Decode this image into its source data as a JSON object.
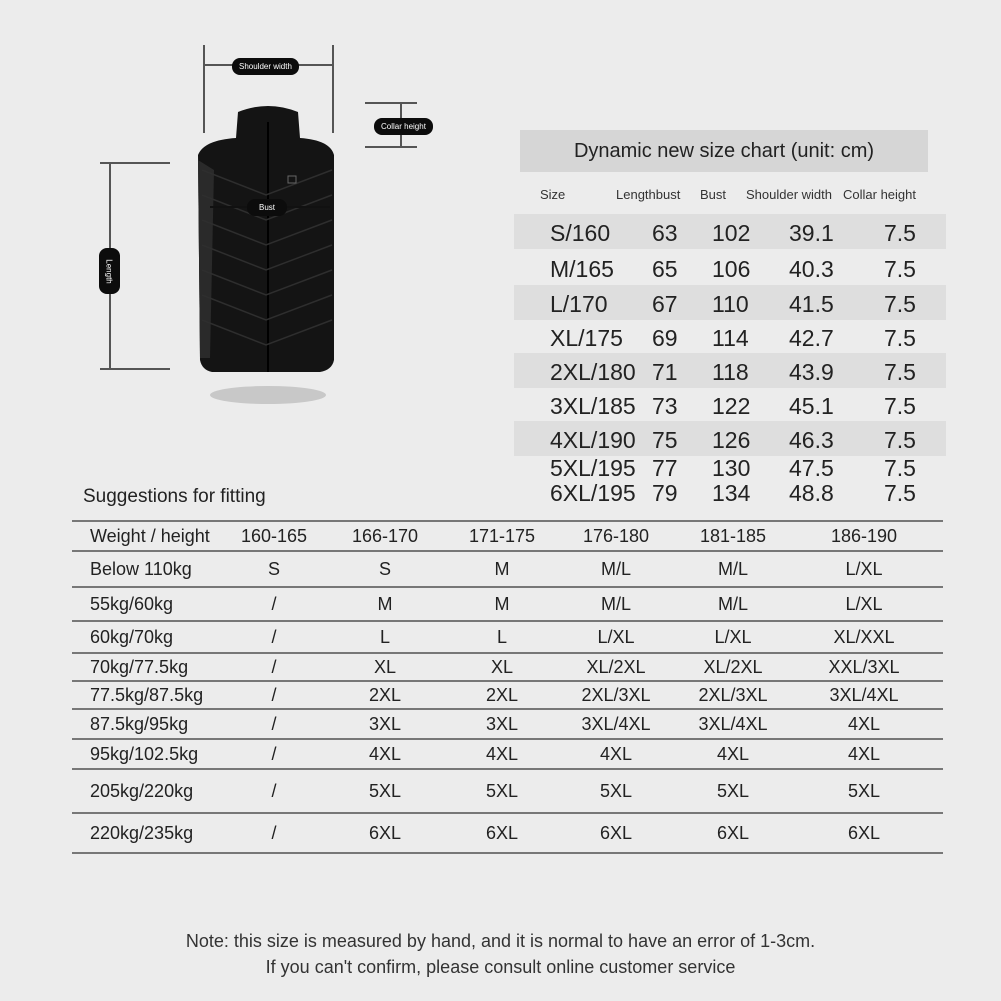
{
  "diagram": {
    "shoulder_width": "Shoulder width",
    "collar_height": "Collar height",
    "bust": "Bust",
    "length": "Length"
  },
  "size_chart": {
    "title": "Dynamic new size chart (unit: cm)",
    "headers": [
      "Size",
      "Lengthbust",
      "Bust",
      "Shoulder width",
      "Collar height"
    ],
    "rows": [
      [
        "S/160",
        "63",
        "102",
        "39.1",
        "7.5"
      ],
      [
        "M/165",
        "65",
        "106",
        "40.3",
        "7.5"
      ],
      [
        "L/170",
        "67",
        "110",
        "41.5",
        "7.5"
      ],
      [
        "XL/175",
        "69",
        "114",
        "42.7",
        "7.5"
      ],
      [
        "2XL/180",
        "71",
        "118",
        "43.9",
        "7.5"
      ],
      [
        "3XL/185",
        "73",
        "122",
        "45.1",
        "7.5"
      ],
      [
        "4XL/190",
        "75",
        "126",
        "46.3",
        "7.5"
      ],
      [
        "5XL/195",
        "77",
        "130",
        "47.5",
        "7.5"
      ],
      [
        "6XL/195",
        "79",
        "134",
        "48.8",
        "7.5"
      ]
    ]
  },
  "fitting": {
    "title": "Suggestions for fitting",
    "headers": [
      "Weight / height",
      "160-165",
      "166-170",
      "171-175",
      "176-180",
      "181-185",
      "186-190"
    ],
    "rows": [
      [
        "Below 110kg",
        "S",
        "S",
        "M",
        "M/L",
        "M/L",
        "L/XL"
      ],
      [
        "55kg/60kg",
        "/",
        "M",
        "M",
        "M/L",
        "M/L",
        "L/XL"
      ],
      [
        "60kg/70kg",
        "/",
        "L",
        "L",
        "L/XL",
        "L/XL",
        "XL/XXL"
      ],
      [
        "70kg/77.5kg",
        "/",
        "XL",
        "XL",
        "XL/2XL",
        "XL/2XL",
        "XXL/3XL"
      ],
      [
        "77.5kg/87.5kg",
        "/",
        "2XL",
        "2XL",
        "2XL/3XL",
        "2XL/3XL",
        "3XL/4XL"
      ],
      [
        "87.5kg/95kg",
        "/",
        "3XL",
        "3XL",
        "3XL/4XL",
        "3XL/4XL",
        "4XL"
      ],
      [
        "95kg/102.5kg",
        "/",
        "4XL",
        "4XL",
        "4XL",
        "4XL",
        "4XL"
      ],
      [
        "205kg/220kg",
        "/",
        "5XL",
        "5XL",
        "5XL",
        "5XL",
        "5XL"
      ],
      [
        "220kg/235kg",
        "/",
        "6XL",
        "6XL",
        "6XL",
        "6XL",
        "6XL"
      ]
    ]
  },
  "note": {
    "line1": "Note: this size is measured by hand, and it is normal to have an error of 1-3cm.",
    "line2": "If you can't confirm, please consult online customer service"
  }
}
